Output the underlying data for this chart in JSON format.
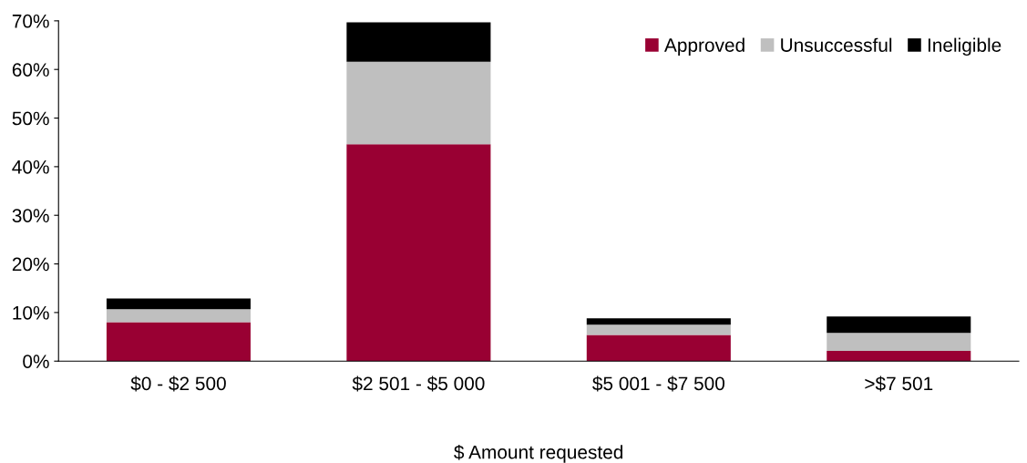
{
  "chart_data": {
    "type": "bar",
    "stacked": true,
    "xlabel": "$ Amount requested",
    "categories": [
      "$0 - $2 500",
      "$2 501 - $5 000",
      "$5 001 - $7 500",
      ">$7 501"
    ],
    "series": [
      {
        "name": "Approved",
        "color": "#990033",
        "values": [
          8.0,
          44.6,
          5.4,
          2.1
        ]
      },
      {
        "name": "Unsuccessful",
        "color": "#bfbfbf",
        "values": [
          2.7,
          17.0,
          2.1,
          3.7
        ]
      },
      {
        "name": "Ineligible",
        "color": "#000000",
        "values": [
          2.2,
          8.1,
          1.3,
          3.4
        ]
      }
    ],
    "ylim": [
      0,
      70
    ],
    "yticks": [
      {
        "value": 0,
        "label": "0%"
      },
      {
        "value": 10,
        "label": "10%"
      },
      {
        "value": 20,
        "label": "20%"
      },
      {
        "value": 30,
        "label": "30%"
      },
      {
        "value": 40,
        "label": "40%"
      },
      {
        "value": 50,
        "label": "50%"
      },
      {
        "value": 60,
        "label": "60%"
      },
      {
        "value": 70,
        "label": "70%"
      }
    ],
    "grid": false,
    "legend": "top right"
  }
}
